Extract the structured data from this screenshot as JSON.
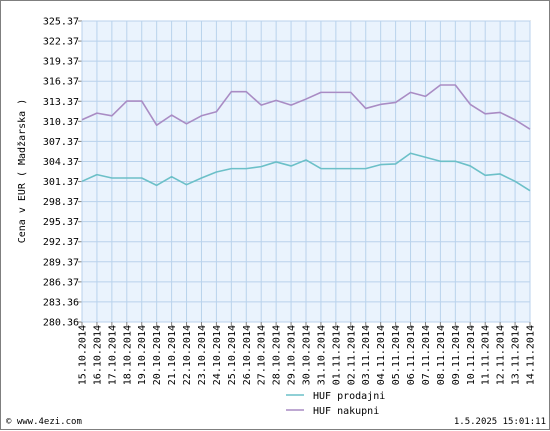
{
  "chart_data": {
    "type": "line",
    "ylabel": "Cena v EUR ( Madžarska )",
    "ylim": [
      280.37,
      325.37
    ],
    "y_ticks": [
      "325.37",
      "322.37",
      "319.37",
      "316.37",
      "313.37",
      "310.37",
      "307.37",
      "304.37",
      "301.37",
      "298.37",
      "295.37",
      "292.37",
      "289.37",
      "286.37",
      "283.36",
      "280.36"
    ],
    "categories": [
      "15.10.2014",
      "16.10.2014",
      "17.10.2014",
      "18.10.2014",
      "19.10.2014",
      "20.10.2014",
      "21.10.2014",
      "22.10.2014",
      "23.10.2014",
      "24.10.2014",
      "25.10.2014",
      "26.10.2014",
      "27.10.2014",
      "28.10.2014",
      "29.10.2014",
      "30.10.2014",
      "31.10.2014",
      "01.11.2014",
      "02.11.2014",
      "03.11.2014",
      "04.11.2014",
      "05.11.2014",
      "06.11.2014",
      "07.11.2014",
      "08.11.2014",
      "09.11.2014",
      "10.11.2014",
      "11.11.2014",
      "12.11.2014",
      "13.11.2014",
      "14.11.2014"
    ],
    "grid": true,
    "legend_position": "bottom",
    "series": [
      {
        "name": "HUF prodajni",
        "color": "#6cc0c8",
        "values": [
          301.4,
          302.4,
          301.9,
          301.9,
          301.9,
          300.8,
          302.1,
          300.9,
          301.9,
          302.8,
          303.3,
          303.3,
          303.6,
          304.3,
          303.7,
          304.6,
          303.3,
          303.3,
          303.3,
          303.3,
          303.9,
          304.0,
          305.6,
          305.0,
          304.4,
          304.4,
          303.7,
          302.3,
          302.5,
          301.4,
          300.0
        ]
      },
      {
        "name": "HUF nakupni",
        "color": "#a98cc4",
        "values": [
          310.6,
          311.6,
          311.2,
          313.4,
          313.4,
          309.8,
          311.3,
          310.0,
          311.2,
          311.8,
          314.8,
          314.8,
          312.8,
          313.5,
          312.8,
          313.7,
          314.7,
          314.7,
          314.7,
          312.3,
          312.9,
          313.2,
          314.7,
          314.1,
          315.8,
          315.8,
          312.9,
          311.5,
          311.7,
          310.6,
          309.2
        ]
      }
    ]
  },
  "footer": {
    "site": "© www.4ezi.com",
    "timestamp": "1.5.2025 15:01:11"
  }
}
